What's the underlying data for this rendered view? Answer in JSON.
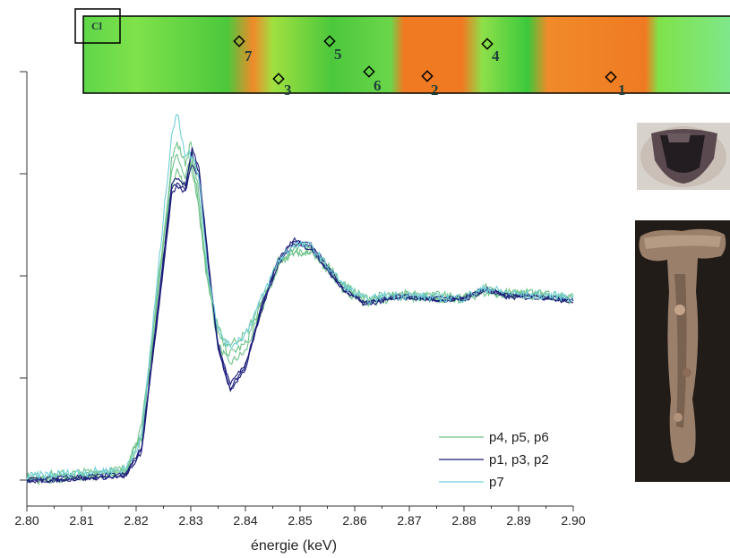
{
  "element_map": {
    "element_label": "Cl",
    "points": [
      {
        "label": "1"
      },
      {
        "label": "2"
      },
      {
        "label": "3"
      },
      {
        "label": "4"
      },
      {
        "label": "5"
      },
      {
        "label": "6"
      },
      {
        "label": "7"
      }
    ],
    "colors": {
      "low": "#3cc83c",
      "mid": "#8ee64a",
      "high": "#f07020",
      "peak": "#e04010"
    }
  },
  "chart_data": {
    "type": "line",
    "title": "",
    "xlabel": "énergie (keV)",
    "ylabel": "",
    "xlim": [
      2.8,
      2.9
    ],
    "x_ticks": [
      "2.80",
      "2.81",
      "2.82",
      "2.83",
      "2.84",
      "2.85",
      "2.86",
      "2.87",
      "2.88",
      "2.89",
      "2.90"
    ],
    "ylim": [
      -0.1,
      1.6
    ],
    "legend_position": "bottom-right",
    "legend": [
      {
        "label": "p4, p5, p6",
        "color": "#6fc28a"
      },
      {
        "label": "p1, p3, p2",
        "color": "#1c1c7a"
      },
      {
        "label": "p7",
        "color": "#6fcfd9"
      }
    ],
    "series": [
      {
        "color": "#6fc28a",
        "points": [
          [
            2.8,
            0.01
          ],
          [
            2.818,
            0.03
          ],
          [
            2.821,
            0.18
          ],
          [
            2.824,
            0.75
          ],
          [
            2.8265,
            1.32
          ],
          [
            2.8275,
            1.38
          ],
          [
            2.829,
            1.3
          ],
          [
            2.83,
            1.38
          ],
          [
            2.8312,
            1.22
          ],
          [
            2.833,
            0.85
          ],
          [
            2.835,
            0.56
          ],
          [
            2.837,
            0.48
          ],
          [
            2.84,
            0.53
          ],
          [
            2.843,
            0.7
          ],
          [
            2.846,
            0.88
          ],
          [
            2.849,
            0.96
          ],
          [
            2.852,
            0.95
          ],
          [
            2.855,
            0.88
          ],
          [
            2.858,
            0.8
          ],
          [
            2.862,
            0.74
          ],
          [
            2.866,
            0.75
          ],
          [
            2.87,
            0.76
          ],
          [
            2.875,
            0.74
          ],
          [
            2.88,
            0.75
          ],
          [
            2.884,
            0.79
          ],
          [
            2.888,
            0.76
          ],
          [
            2.892,
            0.77
          ],
          [
            2.896,
            0.76
          ],
          [
            2.9,
            0.75
          ]
        ]
      },
      {
        "color": "#6fc28a",
        "points": [
          [
            2.8,
            0.0
          ],
          [
            2.818,
            0.04
          ],
          [
            2.821,
            0.2
          ],
          [
            2.824,
            0.8
          ],
          [
            2.8265,
            1.28
          ],
          [
            2.8275,
            1.33
          ],
          [
            2.829,
            1.25
          ],
          [
            2.83,
            1.34
          ],
          [
            2.8312,
            1.18
          ],
          [
            2.833,
            0.83
          ],
          [
            2.835,
            0.6
          ],
          [
            2.837,
            0.52
          ],
          [
            2.84,
            0.56
          ],
          [
            2.843,
            0.73
          ],
          [
            2.846,
            0.9
          ],
          [
            2.849,
            0.94
          ],
          [
            2.852,
            0.93
          ],
          [
            2.855,
            0.87
          ],
          [
            2.858,
            0.78
          ],
          [
            2.862,
            0.73
          ],
          [
            2.866,
            0.74
          ],
          [
            2.87,
            0.77
          ],
          [
            2.875,
            0.75
          ],
          [
            2.88,
            0.74
          ],
          [
            2.884,
            0.78
          ],
          [
            2.888,
            0.77
          ],
          [
            2.892,
            0.76
          ],
          [
            2.896,
            0.76
          ],
          [
            2.9,
            0.74
          ]
        ]
      },
      {
        "color": "#6fc28a",
        "points": [
          [
            2.8,
            0.02
          ],
          [
            2.818,
            0.05
          ],
          [
            2.821,
            0.22
          ],
          [
            2.824,
            0.78
          ],
          [
            2.8265,
            1.22
          ],
          [
            2.8275,
            1.27
          ],
          [
            2.829,
            1.2
          ],
          [
            2.83,
            1.3
          ],
          [
            2.8312,
            1.16
          ],
          [
            2.833,
            0.82
          ],
          [
            2.835,
            0.62
          ],
          [
            2.837,
            0.56
          ],
          [
            2.84,
            0.6
          ],
          [
            2.843,
            0.74
          ],
          [
            2.846,
            0.88
          ],
          [
            2.849,
            0.93
          ],
          [
            2.852,
            0.94
          ],
          [
            2.855,
            0.88
          ],
          [
            2.858,
            0.8
          ],
          [
            2.862,
            0.75
          ],
          [
            2.866,
            0.76
          ],
          [
            2.87,
            0.75
          ],
          [
            2.875,
            0.76
          ],
          [
            2.88,
            0.75
          ],
          [
            2.884,
            0.77
          ],
          [
            2.888,
            0.76
          ],
          [
            2.892,
            0.77
          ],
          [
            2.896,
            0.75
          ],
          [
            2.9,
            0.75
          ]
        ]
      },
      {
        "color": "#1c1c7a",
        "points": [
          [
            2.8,
            0.0
          ],
          [
            2.818,
            0.02
          ],
          [
            2.821,
            0.12
          ],
          [
            2.824,
            0.7
          ],
          [
            2.8265,
            1.19
          ],
          [
            2.8275,
            1.22
          ],
          [
            2.829,
            1.19
          ],
          [
            2.8302,
            1.36
          ],
          [
            2.8315,
            1.28
          ],
          [
            2.833,
            0.95
          ],
          [
            2.835,
            0.55
          ],
          [
            2.8372,
            0.38
          ],
          [
            2.84,
            0.47
          ],
          [
            2.843,
            0.72
          ],
          [
            2.846,
            0.9
          ],
          [
            2.849,
            0.98
          ],
          [
            2.852,
            0.96
          ],
          [
            2.855,
            0.87
          ],
          [
            2.858,
            0.78
          ],
          [
            2.862,
            0.73
          ],
          [
            2.866,
            0.75
          ],
          [
            2.87,
            0.76
          ],
          [
            2.875,
            0.74
          ],
          [
            2.88,
            0.75
          ],
          [
            2.884,
            0.78
          ],
          [
            2.888,
            0.76
          ],
          [
            2.892,
            0.76
          ],
          [
            2.896,
            0.75
          ],
          [
            2.9,
            0.74
          ]
        ]
      },
      {
        "color": "#1c1c7a",
        "points": [
          [
            2.8,
            0.01
          ],
          [
            2.818,
            0.03
          ],
          [
            2.821,
            0.14
          ],
          [
            2.824,
            0.72
          ],
          [
            2.8265,
            1.21
          ],
          [
            2.8275,
            1.24
          ],
          [
            2.829,
            1.21
          ],
          [
            2.8302,
            1.34
          ],
          [
            2.8315,
            1.26
          ],
          [
            2.833,
            0.93
          ],
          [
            2.835,
            0.54
          ],
          [
            2.8372,
            0.37
          ],
          [
            2.84,
            0.46
          ],
          [
            2.843,
            0.7
          ],
          [
            2.846,
            0.89
          ],
          [
            2.849,
            0.97
          ],
          [
            2.852,
            0.95
          ],
          [
            2.855,
            0.86
          ],
          [
            2.858,
            0.78
          ],
          [
            2.862,
            0.72
          ],
          [
            2.866,
            0.74
          ],
          [
            2.87,
            0.75
          ],
          [
            2.875,
            0.74
          ],
          [
            2.88,
            0.74
          ],
          [
            2.884,
            0.78
          ],
          [
            2.888,
            0.75
          ],
          [
            2.892,
            0.75
          ],
          [
            2.896,
            0.75
          ],
          [
            2.9,
            0.73
          ]
        ]
      },
      {
        "color": "#1c1c7a",
        "points": [
          [
            2.8,
            0.0
          ],
          [
            2.818,
            0.02
          ],
          [
            2.821,
            0.13
          ],
          [
            2.824,
            0.68
          ],
          [
            2.8265,
            1.17
          ],
          [
            2.8275,
            1.2
          ],
          [
            2.829,
            1.18
          ],
          [
            2.8302,
            1.3
          ],
          [
            2.8315,
            1.24
          ],
          [
            2.833,
            0.92
          ],
          [
            2.835,
            0.56
          ],
          [
            2.8372,
            0.4
          ],
          [
            2.84,
            0.48
          ],
          [
            2.843,
            0.71
          ],
          [
            2.846,
            0.91
          ],
          [
            2.849,
            0.99
          ],
          [
            2.852,
            0.97
          ],
          [
            2.855,
            0.88
          ],
          [
            2.858,
            0.79
          ],
          [
            2.862,
            0.73
          ],
          [
            2.866,
            0.75
          ],
          [
            2.87,
            0.75
          ],
          [
            2.875,
            0.75
          ],
          [
            2.88,
            0.75
          ],
          [
            2.884,
            0.79
          ],
          [
            2.888,
            0.76
          ],
          [
            2.892,
            0.76
          ],
          [
            2.896,
            0.74
          ],
          [
            2.9,
            0.74
          ]
        ]
      },
      {
        "color": "#6fcfd9",
        "points": [
          [
            2.8,
            0.02
          ],
          [
            2.818,
            0.05
          ],
          [
            2.821,
            0.18
          ],
          [
            2.824,
            0.85
          ],
          [
            2.8265,
            1.42
          ],
          [
            2.8275,
            1.5
          ],
          [
            2.829,
            1.34
          ],
          [
            2.8302,
            1.33
          ],
          [
            2.8315,
            1.25
          ],
          [
            2.833,
            0.88
          ],
          [
            2.835,
            0.62
          ],
          [
            2.837,
            0.55
          ],
          [
            2.84,
            0.6
          ],
          [
            2.843,
            0.75
          ],
          [
            2.846,
            0.9
          ],
          [
            2.849,
            0.97
          ],
          [
            2.852,
            0.96
          ],
          [
            2.855,
            0.88
          ],
          [
            2.858,
            0.8
          ],
          [
            2.862,
            0.74
          ],
          [
            2.866,
            0.76
          ],
          [
            2.87,
            0.76
          ],
          [
            2.875,
            0.75
          ],
          [
            2.88,
            0.75
          ],
          [
            2.884,
            0.79
          ],
          [
            2.888,
            0.77
          ],
          [
            2.892,
            0.76
          ],
          [
            2.896,
            0.76
          ],
          [
            2.9,
            0.75
          ]
        ]
      }
    ]
  }
}
